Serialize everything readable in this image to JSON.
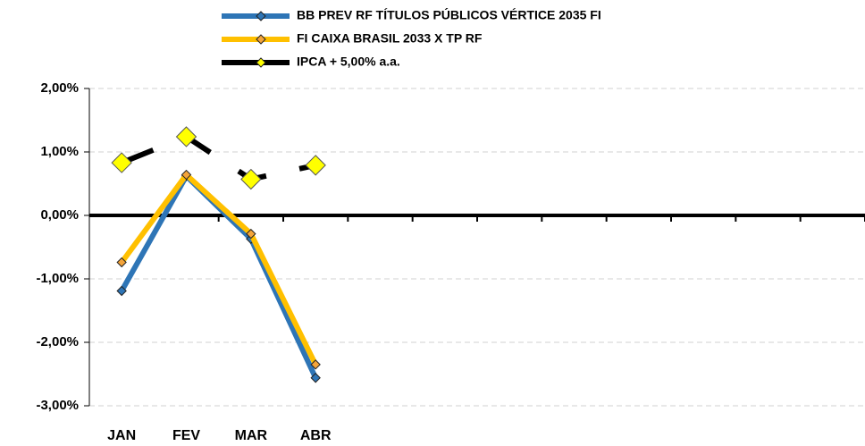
{
  "chart_data": {
    "type": "line",
    "categories": [
      "JAN",
      "FEV",
      "MAR",
      "ABR",
      null,
      null,
      null,
      null,
      null,
      null,
      null,
      null
    ],
    "series": [
      {
        "name": "BB PREV RF TÍTULOS PÚBLICOS VÉRTICE 2035 FI",
        "color": "#2e75b6",
        "marker_color": "#2e75b6",
        "values": [
          -1.19,
          0.62,
          -0.37,
          -2.56,
          null,
          null,
          null,
          null,
          null,
          null,
          null,
          null
        ]
      },
      {
        "name": "FI CAIXA BRASIL 2033 X TP RF",
        "color": "#ffc000",
        "marker_color": "#f4a43a",
        "values": [
          -0.74,
          0.64,
          -0.29,
          -2.35,
          null,
          null,
          null,
          null,
          null,
          null,
          null,
          null
        ]
      },
      {
        "name": "IPCA + 5,00% a.a.",
        "color": "#000000",
        "marker_color": "#ffff00",
        "dashed": true,
        "values": [
          0.83,
          1.24,
          0.57,
          0.79,
          null,
          null,
          null,
          null,
          null,
          null,
          null,
          null
        ]
      }
    ],
    "ylim": [
      -3,
      2
    ],
    "yticks": [
      {
        "value": -3,
        "label": "-3,00%"
      },
      {
        "value": -2,
        "label": "-2,00%"
      },
      {
        "value": -1,
        "label": "-1,00%"
      },
      {
        "value": 0,
        "label": "0,00%"
      },
      {
        "value": 1,
        "label": "1,00%"
      },
      {
        "value": 2,
        "label": "2,00%"
      }
    ],
    "grid": true,
    "legend": "top"
  }
}
